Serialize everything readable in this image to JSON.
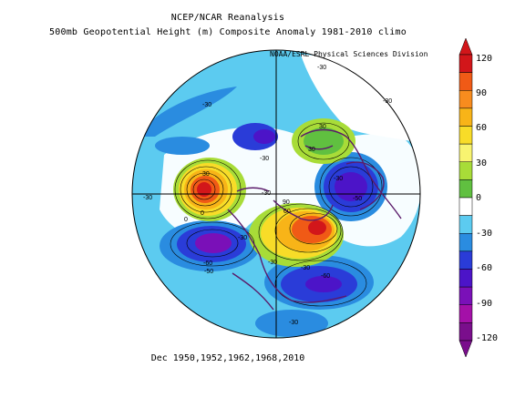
{
  "header": {
    "line1": "NCEP/NCAR Reanalysis",
    "line2": "500mb Geopotential Height (m) Composite Anomaly 1981-2010 climo"
  },
  "credit": "NOAA/ESRL Physical Sciences Division",
  "footer": "Dec 1950,1952,1962,1968,2010",
  "colorbar": {
    "ticks": [
      "120",
      "90",
      "60",
      "30",
      "0",
      "-30",
      "-60",
      "-90",
      "-120"
    ],
    "colors": [
      "#d2161a",
      "#f05a16",
      "#f88c1e",
      "#f8b418",
      "#f8dc28",
      "#f8f470",
      "#a8dc38",
      "#60c040",
      "#ffffff",
      "#5ccbf0",
      "#2a8ce0",
      "#2a3cd8",
      "#4c14c8",
      "#7a10b8",
      "#a410a8",
      "#7a0e8c"
    ]
  },
  "contour_labels": [
    "-30",
    "-30",
    "-30",
    "-30",
    "-30",
    "-30",
    "-30",
    "0",
    "0",
    "-30",
    "-60",
    "-50",
    "-60",
    "-30",
    "-30",
    "-30",
    "-50",
    "30",
    "60",
    "90",
    "30",
    "30"
  ]
}
